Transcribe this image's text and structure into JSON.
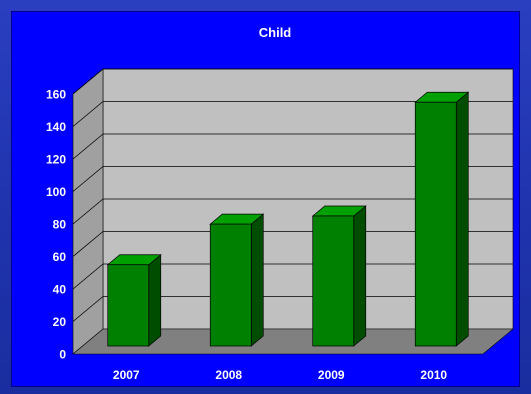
{
  "chart_data": {
    "type": "bar",
    "title": "Child",
    "categories": [
      "2007",
      "2008",
      "2009",
      "2010"
    ],
    "values": [
      50,
      75,
      80,
      150
    ],
    "xlabel": "",
    "ylabel": "",
    "ylim": [
      0,
      160
    ],
    "yticks": [
      0,
      20,
      40,
      60,
      80,
      100,
      120,
      140,
      160
    ],
    "grid": true,
    "legend": "none",
    "three_d": true,
    "colors": {
      "background": "#0000ff",
      "wall": "#c0c0c0",
      "floor": "#808080",
      "side_wall": "#a0a0a0",
      "bar_front": "#008000",
      "bar_top": "#00a000",
      "bar_side": "#004d00",
      "text": "#ffffff"
    }
  }
}
